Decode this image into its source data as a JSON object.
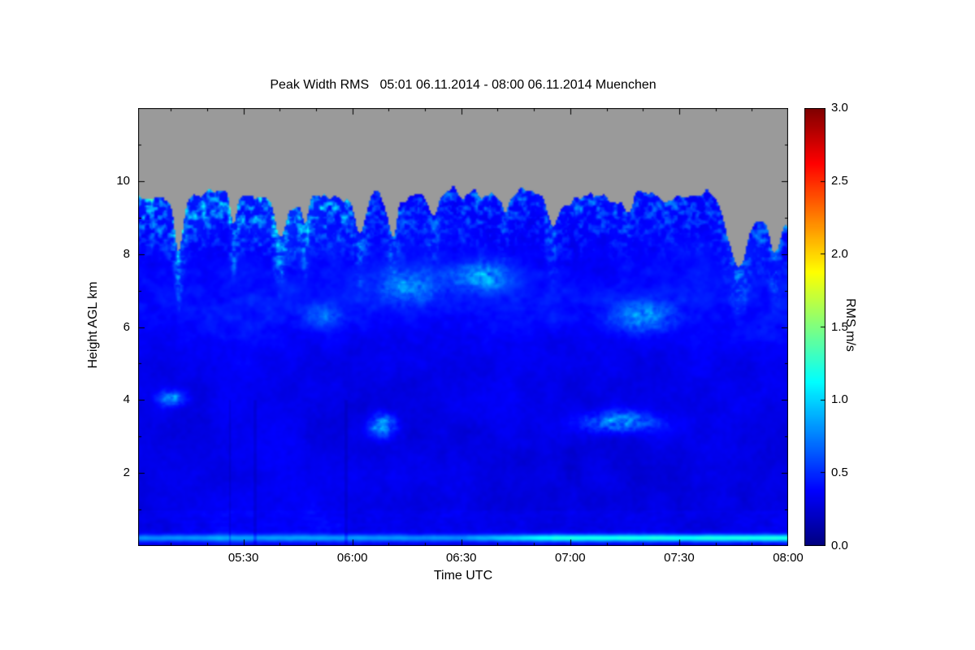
{
  "chart_data": {
    "type": "heatmap",
    "title": "Peak Width RMS   05:01 06.11.2014 - 08:00 06.11.2014 Muenchen",
    "xlabel": "Time UTC",
    "ylabel": "Height AGL km",
    "x_axis": {
      "start_minutes": 301,
      "end_minutes": 480,
      "minor_step_minutes": 10,
      "ticks": [
        {
          "label": "05:30",
          "minutes": 330
        },
        {
          "label": "06:00",
          "minutes": 360
        },
        {
          "label": "06:30",
          "minutes": 390
        },
        {
          "label": "07:00",
          "minutes": 420
        },
        {
          "label": "07:30",
          "minutes": 450
        },
        {
          "label": "08:00",
          "minutes": 480
        }
      ]
    },
    "y_axis": {
      "min_km": 0,
      "max_km": 12,
      "minor_step_km": 1,
      "ticks": [
        {
          "label": "2",
          "km": 2
        },
        {
          "label": "4",
          "km": 4
        },
        {
          "label": "6",
          "km": 6
        },
        {
          "label": "8",
          "km": 8
        },
        {
          "label": "10",
          "km": 10
        }
      ]
    },
    "colorbar": {
      "label": "RMS m/s",
      "min": 0,
      "max": 3,
      "colormap": "jet",
      "ticks": [
        {
          "label": "0.0",
          "value": 0
        },
        {
          "label": "0.5",
          "value": 0.5
        },
        {
          "label": "1.0",
          "value": 1
        },
        {
          "label": "1.5",
          "value": 1.5
        },
        {
          "label": "2.0",
          "value": 2
        },
        {
          "label": "2.5",
          "value": 2.5
        },
        {
          "label": "3.0",
          "value": 3
        }
      ]
    },
    "no_data_color": "#9a9a9a",
    "field": {
      "background_rms": 0.2,
      "cloud_top": {
        "base_km": 9.55,
        "noise_amp_km": 0.4,
        "fine_amp_km": 0.22,
        "max_km": 10.05,
        "decline_start_minute": 458,
        "decline_rate_km_per_min": 0.03,
        "notches": [
          {
            "minute": 312,
            "depth_km": 1.7,
            "width_min": 1.6
          },
          {
            "minute": 327,
            "depth_km": 0.7,
            "width_min": 1.2
          },
          {
            "minute": 340,
            "depth_km": 0.9,
            "width_min": 1.8
          },
          {
            "minute": 347,
            "depth_km": 0.6,
            "width_min": 1.2
          },
          {
            "minute": 362,
            "depth_km": 1.1,
            "width_min": 2.2
          },
          {
            "minute": 371,
            "depth_km": 0.9,
            "width_min": 1.6
          },
          {
            "minute": 382,
            "depth_km": 0.6,
            "width_min": 2.0
          },
          {
            "minute": 402,
            "depth_km": 0.5,
            "width_min": 1.5
          },
          {
            "minute": 415,
            "depth_km": 0.8,
            "width_min": 2.0
          },
          {
            "minute": 436,
            "depth_km": 0.5,
            "width_min": 1.5
          },
          {
            "minute": 466,
            "depth_km": 1.5,
            "width_min": 3.5
          },
          {
            "minute": 476,
            "depth_km": 1.1,
            "width_min": 2.0
          }
        ]
      },
      "cloud_top_streak_depth_km": 1.8,
      "cloud_top_streak_amp": 0.85,
      "cloud_top_early_boost_until_minute": 348,
      "cloud_top_late_factor": 0.55,
      "mid_layer": {
        "center_km": 6.7,
        "width_km": 1.3,
        "amp": 0.12
      },
      "patches": [
        {
          "minute": 310,
          "tw_min": 3.5,
          "height_km": 4.05,
          "hw_km": 0.22,
          "amp": 0.55
        },
        {
          "minute": 352,
          "tw_min": 5.0,
          "height_km": 6.3,
          "hw_km": 0.3,
          "amp": 0.3
        },
        {
          "minute": 368,
          "tw_min": 3.5,
          "height_km": 3.3,
          "hw_km": 0.3,
          "amp": 0.65
        },
        {
          "minute": 375,
          "tw_min": 9.0,
          "height_km": 7.1,
          "hw_km": 0.45,
          "amp": 0.4
        },
        {
          "minute": 396,
          "tw_min": 8.0,
          "height_km": 7.4,
          "hw_km": 0.4,
          "amp": 0.5
        },
        {
          "minute": 440,
          "tw_min": 9.0,
          "height_km": 6.3,
          "hw_km": 0.4,
          "amp": 0.45
        },
        {
          "minute": 433,
          "tw_min": 10.0,
          "height_km": 3.4,
          "hw_km": 0.28,
          "amp": 0.55
        }
      ],
      "surface_layer": {
        "center_km": 0.22,
        "width_km": 0.1,
        "base_amp": 0.5,
        "rise_start_minute": 390,
        "rise_minutes": 25,
        "rise_amp": 0.4
      },
      "dark_column_minutes": [
        326,
        333,
        358
      ]
    }
  }
}
